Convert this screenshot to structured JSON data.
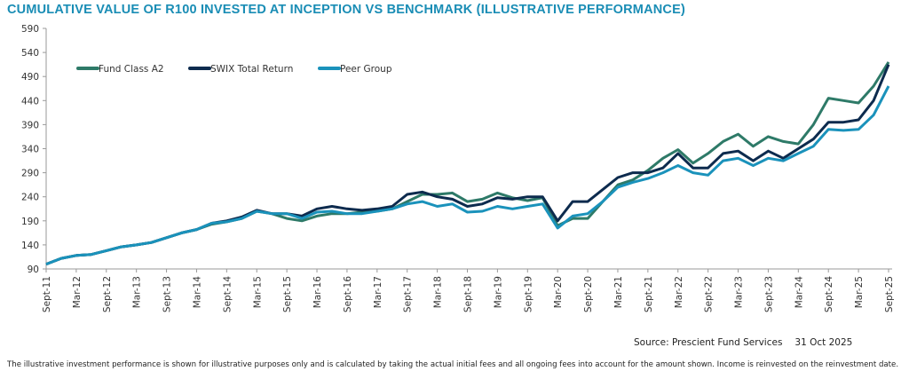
{
  "chart_data": {
    "type": "line",
    "title": "CUMULATIVE VALUE OF R100 INVESTED AT INCEPTION VS BENCHMARK (ILLUSTRATIVE PERFORMANCE)",
    "xlabel": "",
    "ylabel": "",
    "ylim": [
      90,
      590
    ],
    "yticks": [
      90,
      140,
      190,
      240,
      290,
      340,
      390,
      440,
      490,
      540,
      590
    ],
    "x": [
      "Sept-11",
      "Dec-11",
      "Mar-12",
      "Jun-12",
      "Sept-12",
      "Dec-12",
      "Mar-13",
      "Jun-13",
      "Sept-13",
      "Dec-13",
      "Mar-14",
      "Jun-14",
      "Sept-14",
      "Dec-14",
      "Mar-15",
      "Jun-15",
      "Sept-15",
      "Dec-15",
      "Mar-16",
      "Jun-16",
      "Sept-16",
      "Dec-16",
      "Mar-17",
      "Jun-17",
      "Sept-17",
      "Dec-17",
      "Mar-18",
      "Jun-18",
      "Sept-18",
      "Dec-18",
      "Mar-19",
      "Jun-19",
      "Sept-19",
      "Dec-19",
      "Mar-20",
      "Jun-20",
      "Sept-20",
      "Dec-20",
      "Mar-21",
      "Jun-21",
      "Sept-21",
      "Dec-21",
      "Mar-22",
      "Jun-22",
      "Sept-22",
      "Dec-22",
      "Mar-23",
      "Jun-23",
      "Sept-23",
      "Dec-23",
      "Mar-24",
      "Jun-24",
      "Sept-24",
      "Dec-24",
      "Mar-25",
      "Jun-25",
      "Sept-25"
    ],
    "xtick_labels": [
      "Sept-11",
      "Mar-12",
      "Sept-12",
      "Mar-13",
      "Sept-13",
      "Mar-14",
      "Sept-14",
      "Mar-15",
      "Sept-15",
      "Mar-16",
      "Sept-16",
      "Mar-17",
      "Sept-17",
      "Mar-18",
      "Sept-18",
      "Mar-19",
      "Sept-19",
      "Mar-20",
      "Sept-20",
      "Mar-21",
      "Sept-21",
      "Mar-22",
      "Sept-22",
      "Mar-23",
      "Sept-23",
      "Mar-24",
      "Sept-24",
      "Mar-25",
      "Sept-25"
    ],
    "grid": false,
    "legend": "top-left",
    "series": [
      {
        "name": "Fund Class A2",
        "color": "#2e7a68",
        "values": [
          100,
          112,
          118,
          120,
          128,
          136,
          140,
          145,
          155,
          165,
          172,
          183,
          188,
          195,
          210,
          205,
          195,
          190,
          200,
          205,
          205,
          208,
          210,
          215,
          230,
          245,
          245,
          248,
          230,
          235,
          248,
          238,
          232,
          238,
          180,
          195,
          195,
          230,
          265,
          275,
          295,
          320,
          338,
          310,
          330,
          355,
          370,
          345,
          365,
          355,
          350,
          390,
          445,
          440,
          435,
          470,
          520
        ]
      },
      {
        "name": "SWIX Total Return",
        "color": "#0d2b4e",
        "values": [
          100,
          112,
          118,
          120,
          128,
          136,
          140,
          145,
          155,
          165,
          172,
          185,
          190,
          198,
          212,
          205,
          205,
          200,
          215,
          220,
          215,
          212,
          215,
          220,
          245,
          250,
          240,
          235,
          220,
          225,
          238,
          235,
          240,
          240,
          190,
          230,
          230,
          255,
          280,
          290,
          290,
          300,
          330,
          300,
          300,
          330,
          335,
          315,
          335,
          320,
          340,
          360,
          395,
          395,
          400,
          440,
          515
        ]
      },
      {
        "name": "Peer Group",
        "color": "#1a92bb",
        "values": [
          100,
          112,
          118,
          120,
          128,
          136,
          140,
          145,
          155,
          165,
          172,
          185,
          188,
          195,
          210,
          205,
          205,
          195,
          208,
          210,
          205,
          205,
          210,
          215,
          225,
          230,
          220,
          225,
          208,
          210,
          220,
          215,
          220,
          225,
          175,
          200,
          205,
          230,
          260,
          270,
          278,
          290,
          305,
          290,
          285,
          315,
          320,
          305,
          320,
          315,
          330,
          345,
          380,
          378,
          380,
          410,
          470
        ]
      }
    ]
  },
  "footer": {
    "source": "Source: Prescient Fund Services",
    "date": "31 Oct 2025",
    "disclaimer": "The illustrative investment performance is shown for illustrative purposes only and is calculated by taking the actual initial fees and all ongoing fees into account for the amount shown. Income is reinvested on the reinvestment date."
  }
}
